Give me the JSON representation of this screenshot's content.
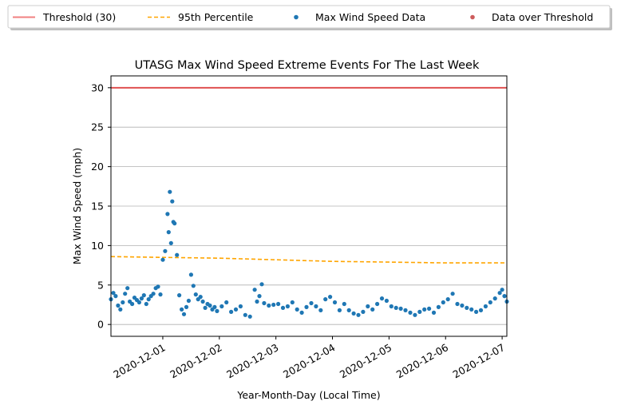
{
  "chart_data": {
    "type": "scatter",
    "title": "UTASG Max Wind Speed Extreme Events For The Last Week",
    "xlabel": "Year-Month-Day (Local Time)",
    "ylabel": "Max Wind Speed (mph)",
    "x_range": [
      "2020-11-30T02:00",
      "2020-12-07T02:00"
    ],
    "ylim": [
      -1.5,
      31.5
    ],
    "x_ticks": [
      "2020-12-01",
      "2020-12-02",
      "2020-12-03",
      "2020-12-04",
      "2020-12-05",
      "2020-12-06",
      "2020-12-07"
    ],
    "y_ticks": [
      0,
      5,
      10,
      15,
      20,
      25,
      30
    ],
    "grid": "horizontal",
    "legend_placement": "top",
    "legend": [
      {
        "label": "Threshold (30)",
        "kind": "line",
        "color": "#f08080"
      },
      {
        "label": "95th Percentile",
        "kind": "dashed-line",
        "color": "#ffa500"
      },
      {
        "label": "Max Wind Speed Data",
        "kind": "marker",
        "color": "#1f77b4"
      },
      {
        "label": "Data over Threshold",
        "kind": "marker",
        "color": "#cd5c5c"
      }
    ],
    "threshold": {
      "value": 30,
      "color": "#e05050"
    },
    "percentile_95": {
      "color": "#ffa500",
      "x": [
        "2020-11-30T02:00",
        "2020-12-01T00:00",
        "2020-12-02T00:00",
        "2020-12-03T00:00",
        "2020-12-04T00:00",
        "2020-12-05T00:00",
        "2020-12-06T00:00",
        "2020-12-07T02:00"
      ],
      "y": [
        8.6,
        8.5,
        8.4,
        8.2,
        8.0,
        7.9,
        7.8,
        7.8
      ]
    },
    "series": [
      {
        "name": "Max Wind Speed Data",
        "color": "#1f77b4",
        "x": [
          "2020-11-30T02:00",
          "2020-11-30T03:00",
          "2020-11-30T04:00",
          "2020-11-30T05:00",
          "2020-11-30T06:00",
          "2020-11-30T07:00",
          "2020-11-30T08:00",
          "2020-11-30T09:00",
          "2020-11-30T10:00",
          "2020-11-30T11:00",
          "2020-11-30T12:00",
          "2020-11-30T13:00",
          "2020-11-30T14:00",
          "2020-11-30T15:00",
          "2020-11-30T16:00",
          "2020-11-30T17:00",
          "2020-11-30T18:00",
          "2020-11-30T19:00",
          "2020-11-30T20:00",
          "2020-11-30T21:00",
          "2020-11-30T22:00",
          "2020-11-30T23:00",
          "2020-12-01T00:00",
          "2020-12-01T01:00",
          "2020-12-01T02:00",
          "2020-12-01T02:30",
          "2020-12-01T03:00",
          "2020-12-01T03:30",
          "2020-12-01T04:00",
          "2020-12-01T04:30",
          "2020-12-01T05:00",
          "2020-12-01T06:00",
          "2020-12-01T07:00",
          "2020-12-01T08:00",
          "2020-12-01T09:00",
          "2020-12-01T10:00",
          "2020-12-01T11:00",
          "2020-12-01T12:00",
          "2020-12-01T13:00",
          "2020-12-01T14:00",
          "2020-12-01T15:00",
          "2020-12-01T16:00",
          "2020-12-01T17:00",
          "2020-12-01T18:00",
          "2020-12-01T19:00",
          "2020-12-01T20:00",
          "2020-12-01T21:00",
          "2020-12-01T22:00",
          "2020-12-01T23:00",
          "2020-12-02T01:00",
          "2020-12-02T03:00",
          "2020-12-02T05:00",
          "2020-12-02T07:00",
          "2020-12-02T09:00",
          "2020-12-02T11:00",
          "2020-12-02T13:00",
          "2020-12-02T15:00",
          "2020-12-02T16:00",
          "2020-12-02T17:00",
          "2020-12-02T18:00",
          "2020-12-02T19:00",
          "2020-12-02T21:00",
          "2020-12-02T23:00",
          "2020-12-03T01:00",
          "2020-12-03T03:00",
          "2020-12-03T05:00",
          "2020-12-03T07:00",
          "2020-12-03T09:00",
          "2020-12-03T11:00",
          "2020-12-03T13:00",
          "2020-12-03T15:00",
          "2020-12-03T17:00",
          "2020-12-03T19:00",
          "2020-12-03T21:00",
          "2020-12-03T23:00",
          "2020-12-04T01:00",
          "2020-12-04T03:00",
          "2020-12-04T05:00",
          "2020-12-04T07:00",
          "2020-12-04T09:00",
          "2020-12-04T11:00",
          "2020-12-04T13:00",
          "2020-12-04T15:00",
          "2020-12-04T17:00",
          "2020-12-04T19:00",
          "2020-12-04T21:00",
          "2020-12-04T23:00",
          "2020-12-05T01:00",
          "2020-12-05T03:00",
          "2020-12-05T05:00",
          "2020-12-05T07:00",
          "2020-12-05T09:00",
          "2020-12-05T11:00",
          "2020-12-05T13:00",
          "2020-12-05T15:00",
          "2020-12-05T17:00",
          "2020-12-05T19:00",
          "2020-12-05T21:00",
          "2020-12-05T23:00",
          "2020-12-06T01:00",
          "2020-12-06T03:00",
          "2020-12-06T05:00",
          "2020-12-06T07:00",
          "2020-12-06T09:00",
          "2020-12-06T11:00",
          "2020-12-06T13:00",
          "2020-12-06T15:00",
          "2020-12-06T17:00",
          "2020-12-06T19:00",
          "2020-12-06T21:00",
          "2020-12-06T23:00",
          "2020-12-07T00:00",
          "2020-12-07T01:00",
          "2020-12-07T02:00"
        ],
        "y": [
          3.2,
          4.0,
          3.6,
          2.4,
          1.9,
          2.8,
          3.9,
          4.6,
          2.9,
          2.6,
          3.4,
          3.1,
          2.8,
          3.3,
          3.7,
          2.6,
          3.2,
          3.6,
          3.9,
          4.6,
          4.8,
          3.8,
          8.2,
          9.3,
          14.0,
          11.7,
          16.8,
          10.3,
          15.6,
          13.0,
          12.8,
          8.8,
          3.7,
          1.9,
          1.3,
          2.2,
          3.0,
          6.3,
          4.9,
          3.8,
          3.2,
          3.5,
          2.9,
          2.1,
          2.6,
          2.4,
          1.9,
          2.2,
          1.7,
          2.3,
          2.8,
          1.6,
          1.9,
          2.3,
          1.2,
          1.0,
          4.4,
          2.9,
          3.6,
          5.1,
          2.7,
          2.4,
          2.5,
          2.6,
          2.1,
          2.3,
          2.8,
          1.9,
          1.5,
          2.2,
          2.7,
          2.3,
          1.8,
          3.2,
          3.5,
          2.8,
          1.8,
          2.6,
          1.8,
          1.4,
          1.2,
          1.6,
          2.3,
          1.9,
          2.6,
          3.3,
          3.0,
          2.3,
          2.1,
          2.0,
          1.8,
          1.5,
          1.2,
          1.6,
          1.9,
          2.0,
          1.5,
          2.2,
          2.8,
          3.2,
          3.9,
          2.6,
          2.4,
          2.1,
          1.9,
          1.6,
          1.8,
          2.3,
          2.8,
          3.3,
          4.0,
          4.4,
          3.6,
          2.9
        ]
      },
      {
        "name": "Data over Threshold",
        "color": "#cd5c5c",
        "x": [],
        "y": []
      }
    ]
  }
}
